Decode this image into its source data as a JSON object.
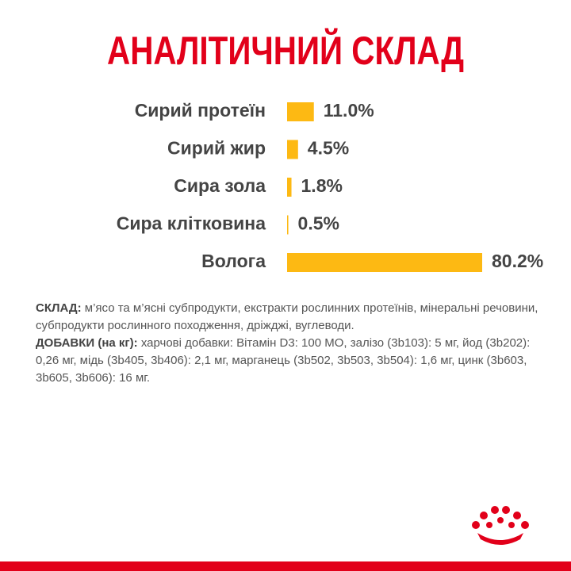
{
  "chart_data": {
    "type": "bar",
    "orientation": "horizontal",
    "title": "АНАЛІТИЧНИЙ СКЛАД",
    "categories": [
      "Сирий протеїн",
      "Сирий жир",
      "Сира зола",
      "Сира клітковина",
      "Волога"
    ],
    "values": [
      11.0,
      4.5,
      1.8,
      0.5,
      80.2
    ],
    "value_labels": [
      "11.0%",
      "4.5%",
      "1.8%",
      "0.5%",
      "80.2%"
    ],
    "color": "#fdb913"
  },
  "composition": {
    "heading": "СКЛАД:",
    "text": "м’ясо та м’ясні субпродукти, екстракти рослинних протеїнів, мінеральні речовини, субпродукти рослинного походження, дріжджі, вуглеводи."
  },
  "additives": {
    "heading": "ДОБАВКИ (на кг):",
    "text": "харчові добавки: Вітамін D3: 100 МО, залізо (3b103): 5 мг, йод (3b202): 0,26 мг, мідь (3b405, 3b406): 2,1 мг, марганець (3b502, 3b503, 3b504): 1,6 мг, цинк (3b603, 3b605, 3b606): 16 мг."
  }
}
